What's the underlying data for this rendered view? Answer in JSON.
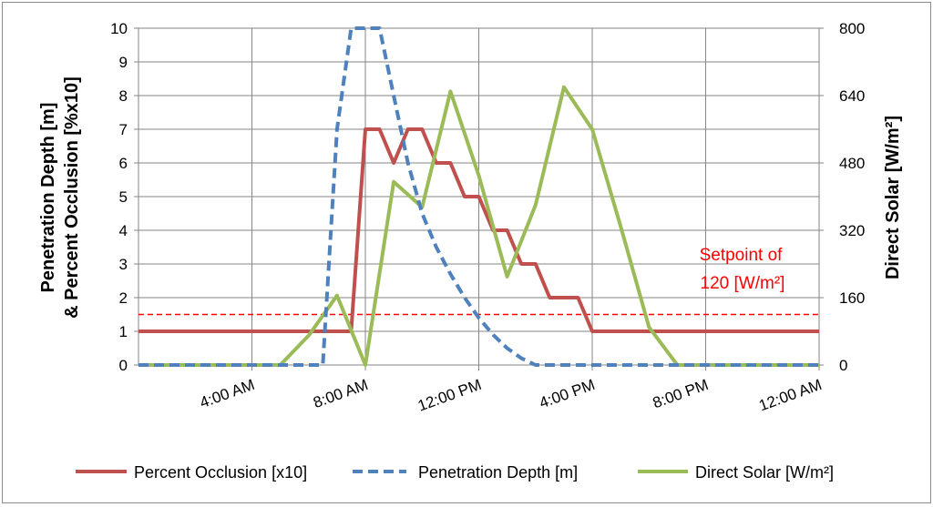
{
  "chart_data": {
    "type": "line",
    "title": "",
    "xlabel": "",
    "ylabel_left": [
      "Penetration Depth [m]",
      "& Percent Occlusion [%x10]"
    ],
    "ylabel_right": "Direct Solar [W/m²]",
    "ylim_left": [
      0,
      10
    ],
    "ylim_right": [
      0,
      800
    ],
    "xlim": [
      0,
      24
    ],
    "grid": true,
    "y_ticks_left": [
      "0",
      "1",
      "2",
      "3",
      "4",
      "5",
      "6",
      "7",
      "8",
      "9",
      "10"
    ],
    "y_ticks_right": [
      "0",
      "160",
      "320",
      "480",
      "640",
      "800"
    ],
    "x_ticks": [
      {
        "label": "4:00 AM",
        "hour": 4
      },
      {
        "label": "8:00 AM",
        "hour": 8
      },
      {
        "label": "12:00 PM",
        "hour": 12
      },
      {
        "label": "4:00 PM",
        "hour": 16
      },
      {
        "label": "8:00 PM",
        "hour": 20
      },
      {
        "label": "12:00 AM",
        "hour": 24
      }
    ],
    "series": [
      {
        "name": "Percent Occlusion [x10]",
        "axis": "left",
        "color": "#c0504d",
        "style": "solid",
        "points": [
          [
            0,
            1
          ],
          [
            6.5,
            1
          ],
          [
            7,
            1
          ],
          [
            7.5,
            1
          ],
          [
            8,
            7
          ],
          [
            8.5,
            7
          ],
          [
            9,
            6
          ],
          [
            9.5,
            7
          ],
          [
            10,
            7
          ],
          [
            10.5,
            6
          ],
          [
            11,
            6
          ],
          [
            11.5,
            5
          ],
          [
            12,
            5
          ],
          [
            12.5,
            4
          ],
          [
            13,
            4
          ],
          [
            13.5,
            3
          ],
          [
            14,
            3
          ],
          [
            14.5,
            2
          ],
          [
            15,
            2
          ],
          [
            15.5,
            2
          ],
          [
            16,
            1
          ],
          [
            24,
            1
          ]
        ]
      },
      {
        "name": "Penetration Depth [m]",
        "axis": "left",
        "color": "#4f81bd",
        "style": "dashed",
        "points": [
          [
            0,
            0
          ],
          [
            5.5,
            0
          ],
          [
            6,
            0
          ],
          [
            6.5,
            0
          ],
          [
            7,
            7
          ],
          [
            7.5,
            10
          ],
          [
            8,
            10
          ],
          [
            8.5,
            10
          ],
          [
            9,
            8
          ],
          [
            9.5,
            6
          ],
          [
            10,
            4.5
          ],
          [
            10.5,
            3.5
          ],
          [
            11,
            2.7
          ],
          [
            11.5,
            2
          ],
          [
            12,
            1.4
          ],
          [
            12.5,
            0.9
          ],
          [
            13,
            0.5
          ],
          [
            13.5,
            0.2
          ],
          [
            14,
            0
          ],
          [
            24,
            0
          ]
        ]
      },
      {
        "name": "Direct Solar [W/m²]",
        "axis": "right",
        "color": "#9bbb59",
        "style": "solid",
        "points": [
          [
            0,
            0
          ],
          [
            5,
            0
          ],
          [
            6,
            70
          ],
          [
            7,
            165
          ],
          [
            8,
            0
          ],
          [
            9,
            435
          ],
          [
            10,
            375
          ],
          [
            11,
            650
          ],
          [
            12,
            450
          ],
          [
            13,
            210
          ],
          [
            14,
            380
          ],
          [
            15,
            660
          ],
          [
            16,
            560
          ],
          [
            17,
            330
          ],
          [
            18,
            90
          ],
          [
            19,
            0
          ],
          [
            24,
            0
          ]
        ]
      }
    ],
    "setpoint": {
      "value": 120,
      "axis": "right",
      "color": "#ff0000",
      "label_line1": "Setpoint of",
      "label_line2": "120 [W/m²]"
    },
    "legend_position": "bottom"
  }
}
